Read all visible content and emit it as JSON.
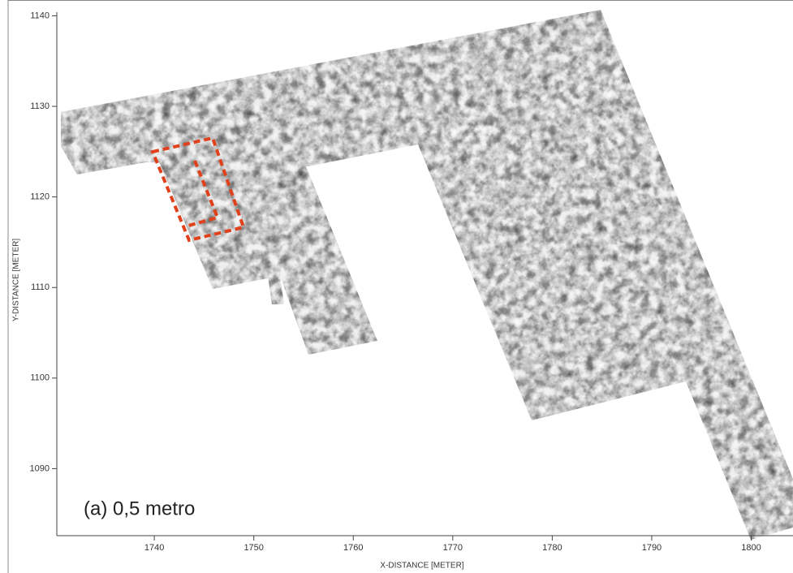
{
  "chart_data": {
    "type": "raster-map",
    "annotation": "(a) 0,5 metro",
    "x_label": "X-DISTANCE [METER]",
    "y_label": "Y-DISTANCE [METER]",
    "xlim": [
      1730.2,
      1804.2
    ],
    "ylim": [
      1082.6,
      1140.4
    ],
    "xticks": [
      1740,
      1750,
      1760,
      1770,
      1780,
      1790,
      1800
    ],
    "yticks": [
      1090,
      1100,
      1110,
      1120,
      1130,
      1140
    ]
  }
}
